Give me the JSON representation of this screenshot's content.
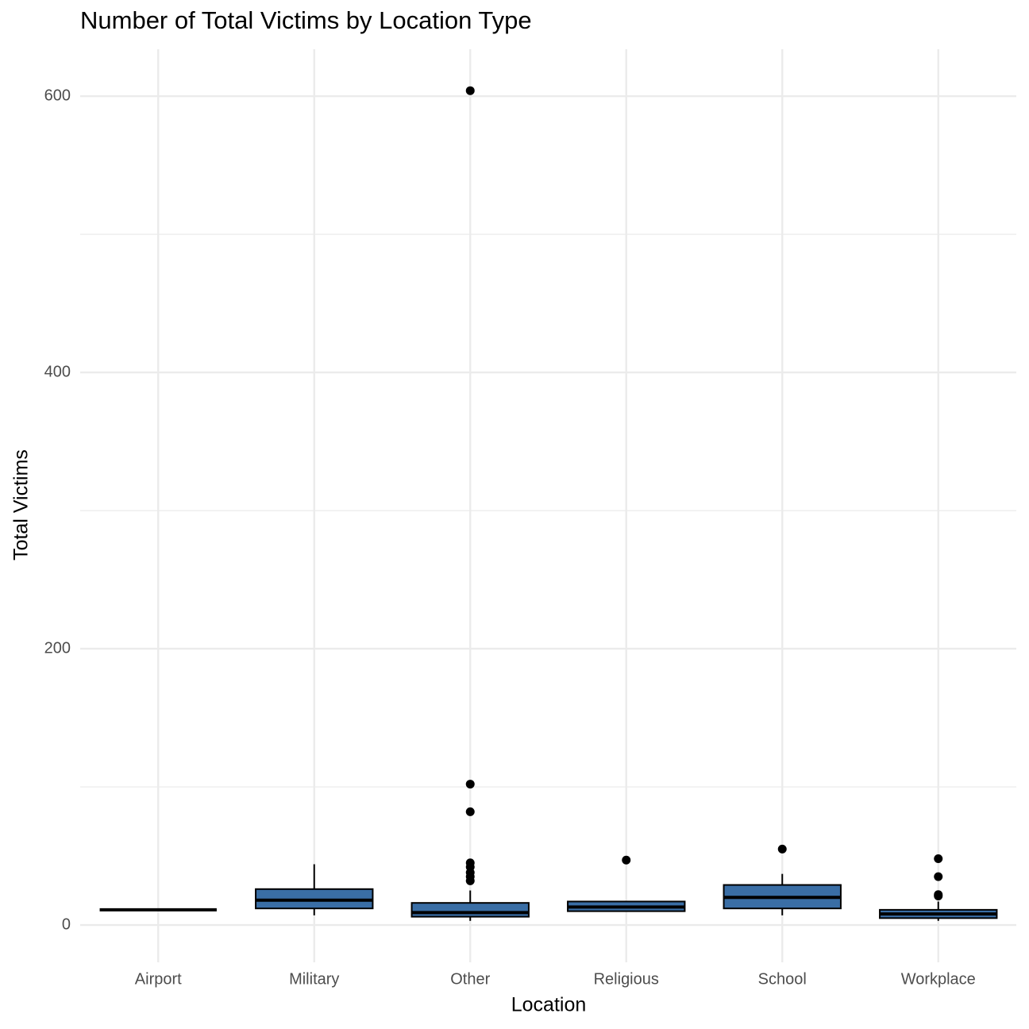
{
  "chart_data": {
    "type": "boxplot",
    "title": "Number of Total Victims by Location Type",
    "x_label": "Location",
    "y_label": "Total Victims",
    "categories": [
      "Airport",
      "Military",
      "Other",
      "Religious",
      "School",
      "Workplace"
    ],
    "boxes": [
      {
        "min": 11,
        "q1": 11,
        "median": 11,
        "q3": 11,
        "max": 11,
        "outliers": []
      },
      {
        "min": 7,
        "q1": 12,
        "median": 18,
        "q3": 26,
        "max": 44,
        "outliers": []
      },
      {
        "min": 3,
        "q1": 6,
        "median": 9,
        "q3": 16,
        "max": 25,
        "outliers": [
          604,
          102,
          82,
          45,
          42,
          38,
          35,
          32
        ]
      },
      {
        "min": 10,
        "q1": 10,
        "median": 13,
        "q3": 17,
        "max": 17,
        "outliers": [
          47
        ]
      },
      {
        "min": 7,
        "q1": 12,
        "median": 20,
        "q3": 29,
        "max": 37,
        "outliers": [
          55
        ]
      },
      {
        "min": 3,
        "q1": 5,
        "median": 8,
        "q3": 11,
        "max": 17,
        "outliers": [
          48,
          35,
          22,
          21
        ]
      }
    ],
    "color": "#3a6ea5",
    "outline_color": "#000000",
    "ylim": [
      -27,
      634
    ],
    "yticks": [
      0,
      200,
      400,
      600
    ],
    "minor_yticks": [
      100,
      300,
      500
    ],
    "grid": true
  }
}
